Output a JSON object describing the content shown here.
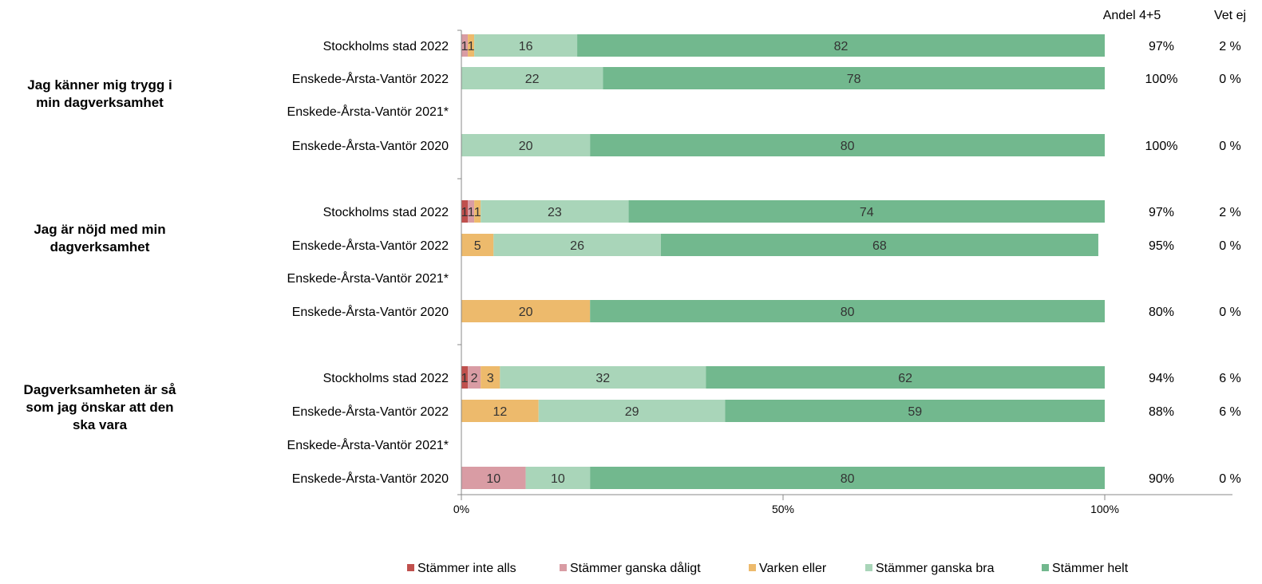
{
  "chart_data": {
    "type": "bar",
    "stacked": true,
    "orientation": "horizontal",
    "header": {
      "andel": "Andel 4+5",
      "vetej": "Vet ej"
    },
    "legend": [
      {
        "name": "Stämmer inte alls",
        "color": "#C0504D"
      },
      {
        "name": "Stämmer ganska dåligt",
        "color": "#D99CA4"
      },
      {
        "name": "Varken eller",
        "color": "#EDBA6C"
      },
      {
        "name": "Stämmer ganska bra",
        "color": "#A9D5B9"
      },
      {
        "name": "Stämmer helt",
        "color": "#72B88E"
      }
    ],
    "legend_position": "bottom",
    "xlim": [
      0,
      100
    ],
    "x_ticks": [
      "0%",
      "50%",
      "100%"
    ],
    "groups": [
      {
        "label": "Jag känner mig trygg i min dagverksamhet",
        "rows": [
          {
            "label": "Stockholms stad 2022",
            "values": [
              0,
              1,
              1,
              16,
              82
            ],
            "labels": [
              "",
              "1",
              "1",
              "16",
              "82"
            ],
            "andel": "97%",
            "vetej": "2 %"
          },
          {
            "label": "Enskede-Årsta-Vantör 2022",
            "values": [
              0,
              0,
              0,
              22,
              78
            ],
            "labels": [
              "",
              "",
              "",
              "22",
              "78"
            ],
            "andel": "100%",
            "vetej": "0 %"
          },
          {
            "label": "Enskede-Årsta-Vantör 2021*",
            "values": [
              0,
              0,
              0,
              0,
              0
            ],
            "labels": [
              "",
              "",
              "",
              "",
              ""
            ],
            "andel": "",
            "vetej": ""
          },
          {
            "label": "Enskede-Årsta-Vantör 2020",
            "values": [
              0,
              0,
              0,
              20,
              80
            ],
            "labels": [
              "",
              "",
              "",
              "20",
              "80"
            ],
            "andel": "100%",
            "vetej": "0 %"
          }
        ]
      },
      {
        "label": "Jag är nöjd med min dagverksamhet",
        "rows": [
          {
            "label": "Stockholms stad 2022",
            "values": [
              1,
              1,
              1,
              23,
              74
            ],
            "labels": [
              "1",
              "1",
              "1",
              "23",
              "74"
            ],
            "andel": "97%",
            "vetej": "2 %"
          },
          {
            "label": "Enskede-Årsta-Vantör 2022",
            "values": [
              0,
              0,
              5,
              26,
              68
            ],
            "labels": [
              "",
              "",
              "5",
              "26",
              "68"
            ],
            "andel": "95%",
            "vetej": "0 %"
          },
          {
            "label": "Enskede-Årsta-Vantör 2021*",
            "values": [
              0,
              0,
              0,
              0,
              0
            ],
            "labels": [
              "",
              "",
              "",
              "",
              ""
            ],
            "andel": "",
            "vetej": ""
          },
          {
            "label": "Enskede-Årsta-Vantör 2020",
            "values": [
              0,
              0,
              20,
              0,
              80
            ],
            "labels": [
              "",
              "",
              "20",
              "",
              "80"
            ],
            "andel": "80%",
            "vetej": "0 %"
          }
        ]
      },
      {
        "label": "Dagverksamheten är så som jag önskar att den ska vara",
        "rows": [
          {
            "label": "Stockholms stad 2022",
            "values": [
              1,
              2,
              3,
              32,
              62
            ],
            "labels": [
              "1",
              "2",
              "3",
              "32",
              "62"
            ],
            "andel": "94%",
            "vetej": "6 %"
          },
          {
            "label": "Enskede-Årsta-Vantör 2022",
            "values": [
              0,
              0,
              12,
              29,
              59
            ],
            "labels": [
              "",
              "",
              "12",
              "29",
              "59"
            ],
            "andel": "88%",
            "vetej": "6 %"
          },
          {
            "label": "Enskede-Årsta-Vantör 2021*",
            "values": [
              0,
              0,
              0,
              0,
              0
            ],
            "labels": [
              "",
              "",
              "",
              "",
              ""
            ],
            "andel": "",
            "vetej": ""
          },
          {
            "label": "Enskede-Årsta-Vantör 2020",
            "values": [
              0,
              10,
              0,
              10,
              80
            ],
            "labels": [
              "",
              "10",
              "",
              "10",
              "80"
            ],
            "andel": "90%",
            "vetej": "0 %"
          }
        ]
      }
    ]
  }
}
